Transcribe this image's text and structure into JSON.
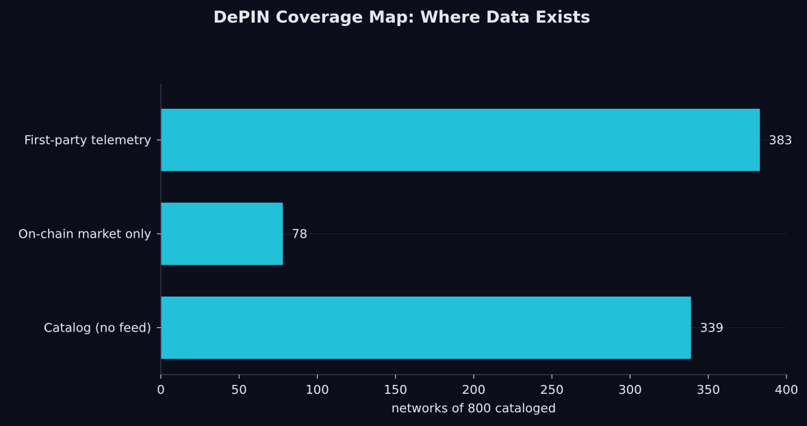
{
  "chart_data": {
    "type": "bar",
    "orientation": "horizontal",
    "title": "DePIN Coverage Map: Where Data Exists",
    "xlabel": "networks of 800 cataloged",
    "ylabel": "",
    "categories": [
      "First-party telemetry",
      "On-chain market only",
      "Catalog (no feed)"
    ],
    "values": [
      383,
      78,
      339
    ],
    "data_labels": [
      "383",
      "78",
      "339"
    ],
    "xlim": [
      0,
      400
    ],
    "xticks": [
      0,
      50,
      100,
      150,
      200,
      250,
      300,
      350,
      400
    ],
    "xtick_labels": [
      "0",
      "50",
      "100",
      "150",
      "200",
      "250",
      "300",
      "350",
      "400"
    ],
    "grid": "horizontal lines at categories",
    "legend": "none",
    "colors": {
      "background": "#0b0e1a",
      "bar": "#22c0d9",
      "text": "#e6e8ef",
      "axis": "#3a3f52",
      "grid": "#1a1e2c"
    }
  }
}
